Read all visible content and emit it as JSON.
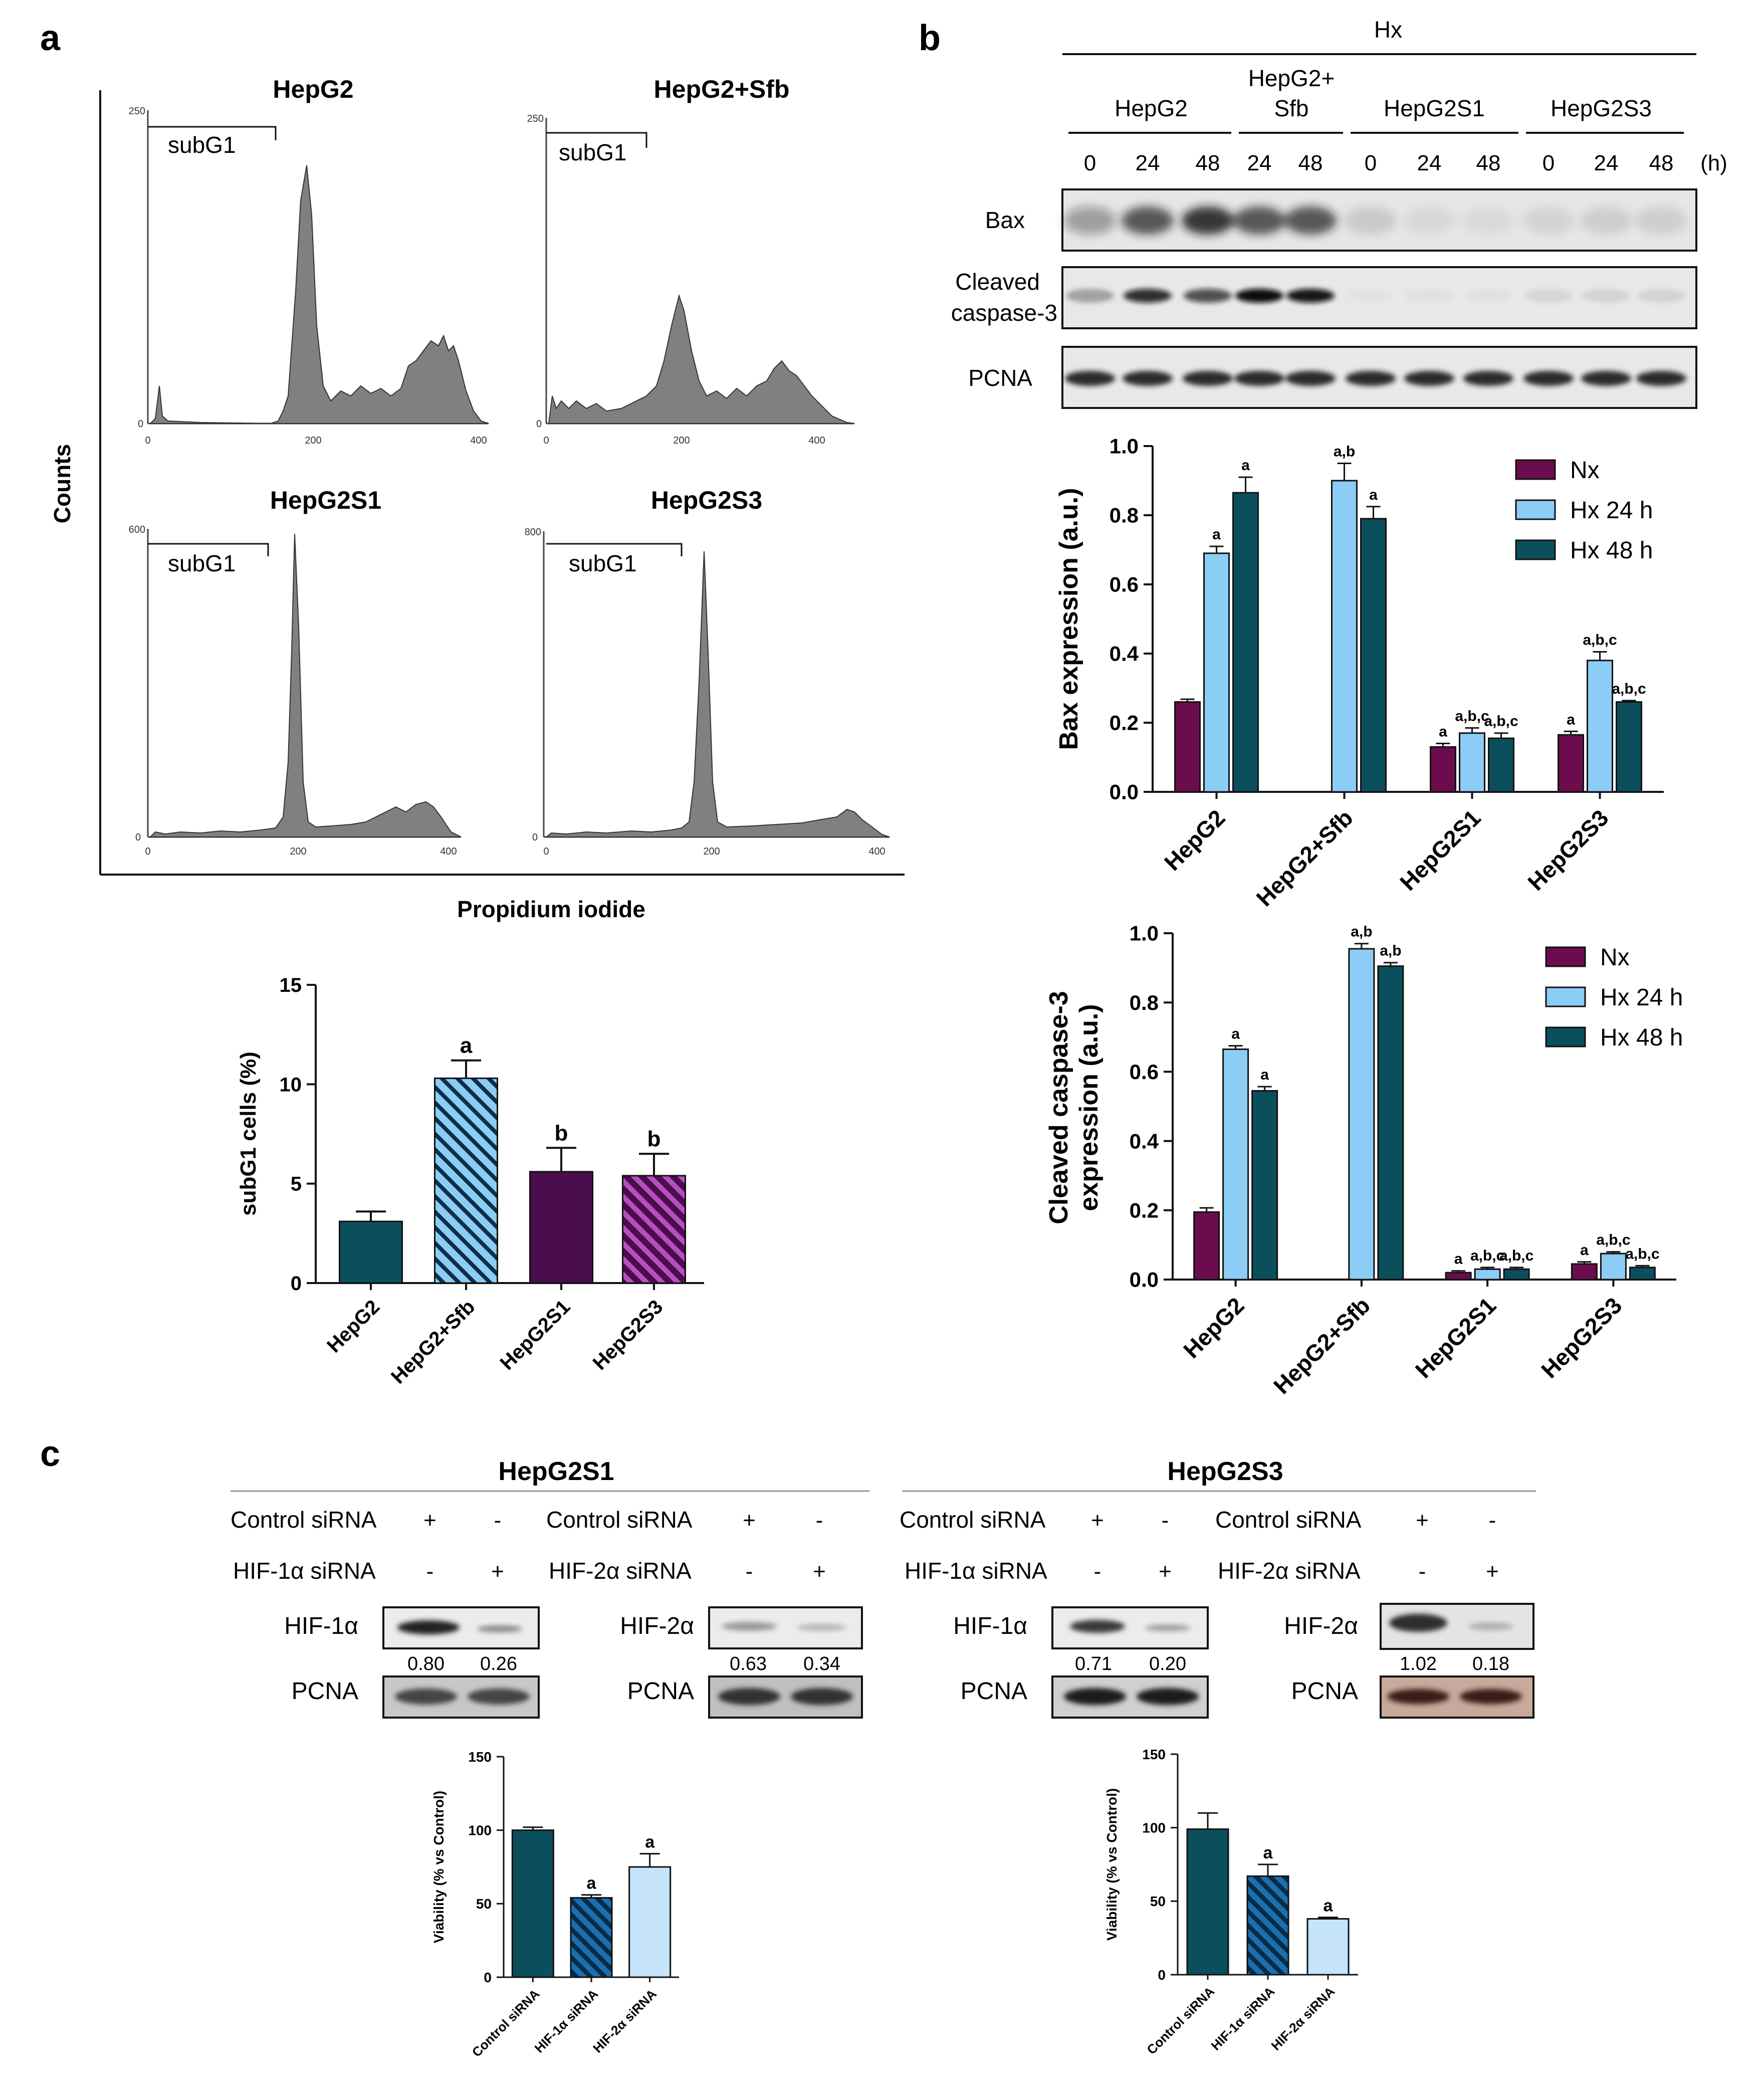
{
  "colors": {
    "nx": "#6b0c4c",
    "hx24": "#8ccdf5",
    "hx48": "#0b4f5c",
    "purple": "#4a0d4e",
    "purple_stripe": "#7b2a7f",
    "light_blue": "#c5e3fb",
    "gray_fill": "#808080"
  },
  "panel_a": {
    "label": "a",
    "y_axis": "Counts",
    "x_axis": "Propidium iodide",
    "gate_label": "subG1",
    "histograms": [
      {
        "title": "HepG2",
        "ymax": "250",
        "ticks": [
          "0",
          "200",
          "400"
        ]
      },
      {
        "title": "HepG2+Sfb",
        "ymax": "250",
        "ticks": [
          "0",
          "200",
          "400"
        ]
      },
      {
        "title": "HepG2S1",
        "ymax": "600",
        "ticks": [
          "0",
          "200",
          "400"
        ]
      },
      {
        "title": "HepG2S3",
        "ymax": "800",
        "ticks": [
          "0",
          "200",
          "400"
        ]
      }
    ]
  },
  "panel_b": {
    "label": "b",
    "hx": "Hx",
    "hours_unit": "(h)",
    "groups": [
      {
        "name": "HepG2",
        "times": [
          "0",
          "24",
          "48"
        ]
      },
      {
        "name": "HepG2+\nSfb",
        "line1": "HepG2+",
        "line2": "Sfb",
        "times": [
          "24",
          "48"
        ]
      },
      {
        "name": "HepG2S1",
        "times": [
          "0",
          "24",
          "48"
        ]
      },
      {
        "name": "HepG2S3",
        "times": [
          "0",
          "24",
          "48"
        ]
      }
    ],
    "blot_rows": [
      "Bax",
      "Cleaved\ncaspase-3",
      "PCNA"
    ],
    "blot_row_cleaved_1": "Cleaved",
    "blot_row_cleaved_2": "caspase-3"
  },
  "panel_c": {
    "label": "c",
    "left": {
      "title": "HepG2S1",
      "control": "Control siRNA",
      "hif1": "HIF-1α siRNA",
      "hif2": "HIF-2α siRNA",
      "plus": "+",
      "minus": "-",
      "blot1": "HIF-1α",
      "blot2": "HIF-2α",
      "pcna": "PCNA",
      "q1": [
        "0.80",
        "0.26"
      ],
      "q2": [
        "0.63",
        "0.34"
      ]
    },
    "right": {
      "title": "HepG2S3",
      "control": "Control siRNA",
      "hif1": "HIF-1α siRNA",
      "hif2": "HIF-2α siRNA",
      "plus": "+",
      "minus": "-",
      "blot1": "HIF-1α",
      "blot2": "HIF-2α",
      "pcna": "PCNA",
      "q1": [
        "0.71",
        "0.20"
      ],
      "q2": [
        "1.02",
        "0.18"
      ]
    }
  },
  "chart_data": [
    {
      "id": "subg1",
      "type": "bar",
      "title": "",
      "xlabel": "",
      "ylabel": "subG1 cells (%)",
      "ylim": [
        0,
        15
      ],
      "yticks": [
        "0",
        "5",
        "10",
        "15"
      ],
      "categories": [
        "HepG2",
        "HepG2+Sfb",
        "HepG2S1",
        "HepG2S3"
      ],
      "values": [
        3.1,
        10.3,
        5.6,
        5.4
      ],
      "errors": [
        0.5,
        0.9,
        1.2,
        1.1
      ],
      "labels": [
        "",
        "a",
        "b",
        "b"
      ]
    },
    {
      "id": "bax",
      "type": "bar",
      "ylabel": "Bax expression (a.u.)",
      "ylim": [
        0,
        1.0
      ],
      "yticks": [
        "0.0",
        "0.2",
        "0.4",
        "0.6",
        "0.8",
        "1.0"
      ],
      "categories": [
        "HepG2",
        "HepG2+Sfb",
        "HepG2S1",
        "HepG2S3"
      ],
      "legend": [
        "Nx",
        "Hx 24 h",
        "Hx 48 h"
      ],
      "series": [
        {
          "name": "Nx",
          "values": [
            0.26,
            null,
            0.13,
            0.165
          ],
          "errors": [
            0.008,
            null,
            0.01,
            0.01
          ],
          "labels": [
            "",
            "",
            "a",
            "a"
          ]
        },
        {
          "name": "Hx 24 h",
          "values": [
            0.69,
            0.9,
            0.17,
            0.38
          ],
          "errors": [
            0.02,
            0.05,
            0.015,
            0.025
          ],
          "labels": [
            "a",
            "a,b",
            "a,b,c",
            "a,b,c"
          ]
        },
        {
          "name": "Hx 48 h",
          "values": [
            0.865,
            0.79,
            0.155,
            0.26
          ],
          "errors": [
            0.045,
            0.035,
            0.015,
            0.004
          ],
          "labels": [
            "a",
            "a",
            "a,b,c",
            "a,b,c"
          ]
        }
      ]
    },
    {
      "id": "casp3",
      "type": "bar",
      "ylabel": "Cleaved caspase-3\nexpression (a.u.)",
      "ylabel1": "Cleaved caspase-3",
      "ylabel2": "expression (a.u.)",
      "ylim": [
        0,
        1.0
      ],
      "yticks": [
        "0.0",
        "0.2",
        "0.4",
        "0.6",
        "0.8",
        "1.0"
      ],
      "categories": [
        "HepG2",
        "HepG2+Sfb",
        "HepG2S1",
        "HepG2S3"
      ],
      "legend": [
        "Nx",
        "Hx 24 h",
        "Hx 48 h"
      ],
      "series": [
        {
          "name": "Nx",
          "values": [
            0.195,
            null,
            0.02,
            0.045
          ],
          "errors": [
            0.012,
            null,
            0.005,
            0.006
          ],
          "labels": [
            "",
            "",
            "a",
            "a"
          ]
        },
        {
          "name": "Hx 24 h",
          "values": [
            0.665,
            0.955,
            0.03,
            0.075
          ],
          "errors": [
            0.01,
            0.015,
            0.005,
            0.005
          ],
          "labels": [
            "a",
            "a,b",
            "a,b,c",
            "a,b,c"
          ]
        },
        {
          "name": "Hx 48 h",
          "values": [
            0.545,
            0.905,
            0.03,
            0.035
          ],
          "errors": [
            0.012,
            0.01,
            0.005,
            0.005
          ],
          "labels": [
            "a",
            "a,b",
            "a,b,c",
            "a,b,c"
          ]
        }
      ]
    },
    {
      "id": "viab_s1",
      "type": "bar",
      "ylabel": "Viability (% vs Control)",
      "ylim": [
        0,
        150
      ],
      "yticks": [
        "0",
        "50",
        "100",
        "150"
      ],
      "categories": [
        "Control siRNA",
        "HIF-1α siRNA",
        "HIF-2α siRNA"
      ],
      "values": [
        100,
        54,
        75
      ],
      "errors": [
        2,
        2,
        9
      ],
      "labels": [
        "",
        "a",
        "a"
      ]
    },
    {
      "id": "viab_s3",
      "type": "bar",
      "ylabel": "Viability (% vs Control)",
      "ylim": [
        0,
        150
      ],
      "yticks": [
        "0",
        "50",
        "100",
        "150"
      ],
      "categories": [
        "Control siRNA",
        "HIF-1α siRNA",
        "HIF-2α siRNA"
      ],
      "values": [
        99,
        67,
        38
      ],
      "errors": [
        11,
        8,
        1
      ],
      "labels": [
        "",
        "a",
        "a"
      ]
    }
  ]
}
